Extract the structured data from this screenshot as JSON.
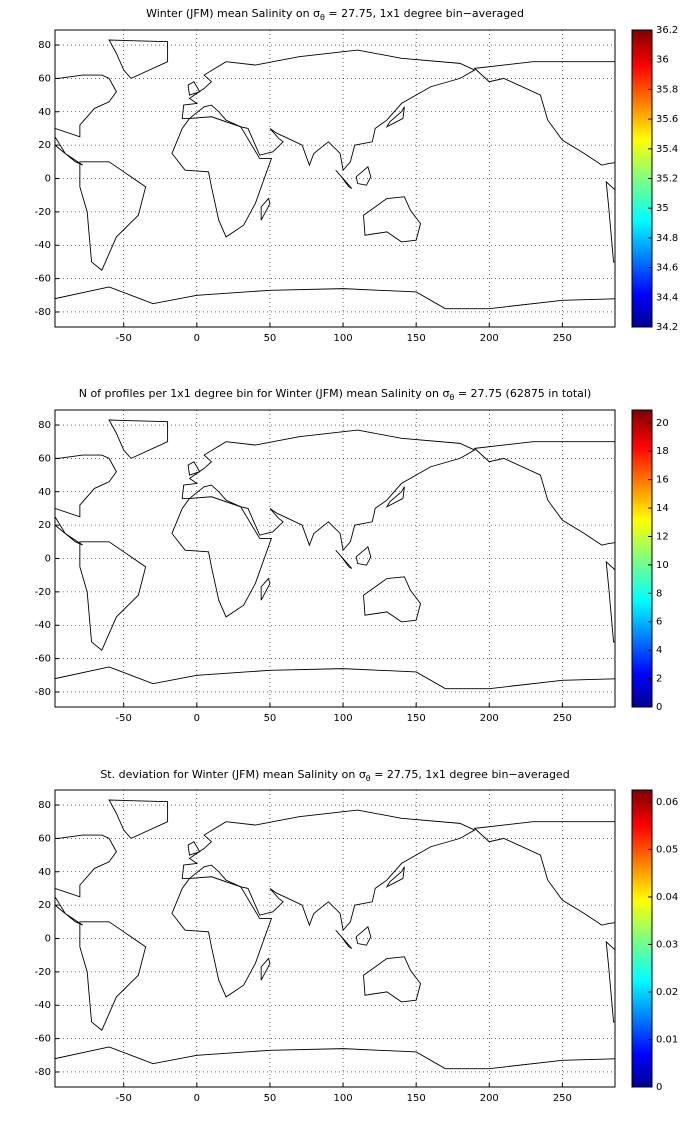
{
  "chart_data": [
    {
      "type": "map",
      "title": [
        "Winter (JFM) mean Salinity on σ",
        "θ",
        " = 27.75, 1x1 degree bin−averaged"
      ],
      "xlim": [
        -97,
        286
      ],
      "ylim": [
        -89,
        89
      ],
      "xticks": [
        -50,
        0,
        50,
        100,
        150,
        200,
        250
      ],
      "yticks": [
        -80,
        -60,
        -40,
        -20,
        0,
        20,
        40,
        60,
        80
      ],
      "clim": [
        34.2,
        36.2
      ],
      "cticks": [
        34.2,
        34.4,
        34.6,
        34.8,
        35,
        35.2,
        35.4,
        35.6,
        35.8,
        36,
        36.2
      ],
      "grid": true
    },
    {
      "type": "map",
      "title": [
        "N of profiles per 1x1 degree bin for Winter (JFM) mean Salinity on σ",
        "θ",
        " = 27.75 (62875 in total)"
      ],
      "xlim": [
        -97,
        286
      ],
      "ylim": [
        -89,
        89
      ],
      "xticks": [
        -50,
        0,
        50,
        100,
        150,
        200,
        250
      ],
      "yticks": [
        -80,
        -60,
        -40,
        -20,
        0,
        20,
        40,
        60,
        80
      ],
      "clim": [
        0,
        20.9
      ],
      "cticks": [
        0,
        2,
        4,
        6,
        8,
        10,
        12,
        14,
        16,
        18,
        20
      ],
      "grid": true
    },
    {
      "type": "map",
      "title": [
        "St. deviation for Winter (JFM) mean Salinity on σ",
        "θ",
        " = 27.75, 1x1 degree bin−averaged"
      ],
      "xlim": [
        -97,
        286
      ],
      "ylim": [
        -89,
        89
      ],
      "xticks": [
        -50,
        0,
        50,
        100,
        150,
        200,
        250
      ],
      "yticks": [
        -80,
        -60,
        -40,
        -20,
        0,
        20,
        40,
        60,
        80
      ],
      "clim": [
        0,
        0.0625
      ],
      "cticks": [
        0,
        0.01,
        0.02,
        0.03,
        0.04,
        0.05,
        0.06
      ],
      "grid": true
    }
  ]
}
